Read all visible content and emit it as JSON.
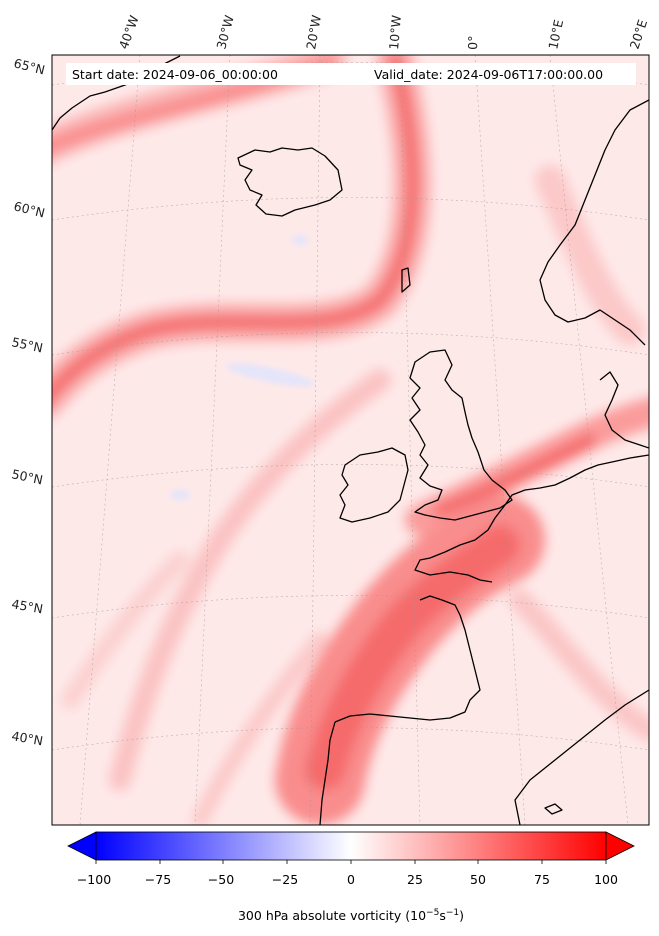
{
  "header": {
    "start_date": "Start date: 2024-09-06_00:00:00",
    "valid_date": "Valid_date: 2024-09-06T17:00:00.00"
  },
  "map": {
    "projection_hint": "conic",
    "lon_labels": [
      "40°W",
      "30°W",
      "20°W",
      "10°W",
      "0°",
      "10°E",
      "20°E"
    ],
    "lat_labels": [
      "65°N",
      "60°N",
      "55°N",
      "50°N",
      "45°N",
      "40°N"
    ],
    "field": "300 hPa absolute vorticity",
    "colormap": "bwr",
    "colors": {
      "positive_max": "#ff0000",
      "negative_max": "#0000ff",
      "neutral": "#ffffff",
      "coastline": "#000000"
    }
  },
  "colorbar": {
    "ticks": [
      "−100",
      "−75",
      "−50",
      "−25",
      "0",
      "25",
      "50",
      "75",
      "100"
    ],
    "tick_values": [
      -100,
      -75,
      -50,
      -25,
      0,
      25,
      50,
      75,
      100
    ],
    "range": [
      -100,
      100
    ],
    "extend": "both",
    "label_main": "300 hPa absolute vorticity (10",
    "label_exp1": "−5",
    "label_mid": "s",
    "label_exp2": "−1",
    "label_end": ")"
  }
}
